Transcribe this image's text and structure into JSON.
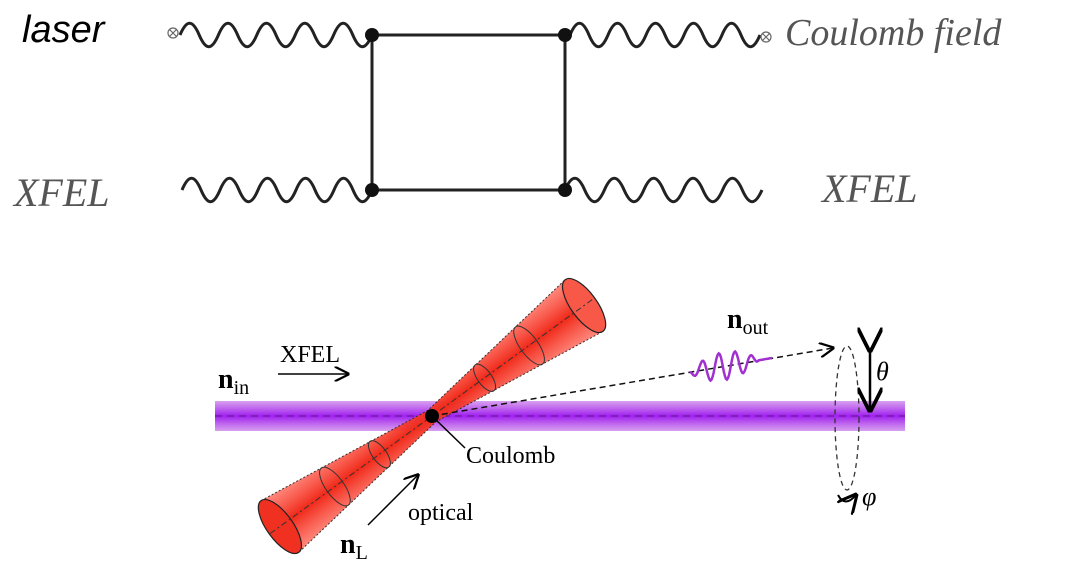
{
  "feynman": {
    "laser": "laser",
    "coulomb_field": "Coulomb field",
    "xfel_in": "XFEL",
    "xfel_out": "XFEL"
  },
  "scattering": {
    "n_in": {
      "base": "n",
      "sub": "in"
    },
    "xfel": "XFEL",
    "n_out": {
      "base": "n",
      "sub": "out"
    },
    "theta": "θ",
    "coulomb": "Coulomb",
    "optical": "optical",
    "n_L": {
      "base": "n",
      "sub": "L"
    },
    "phi": "φ"
  }
}
